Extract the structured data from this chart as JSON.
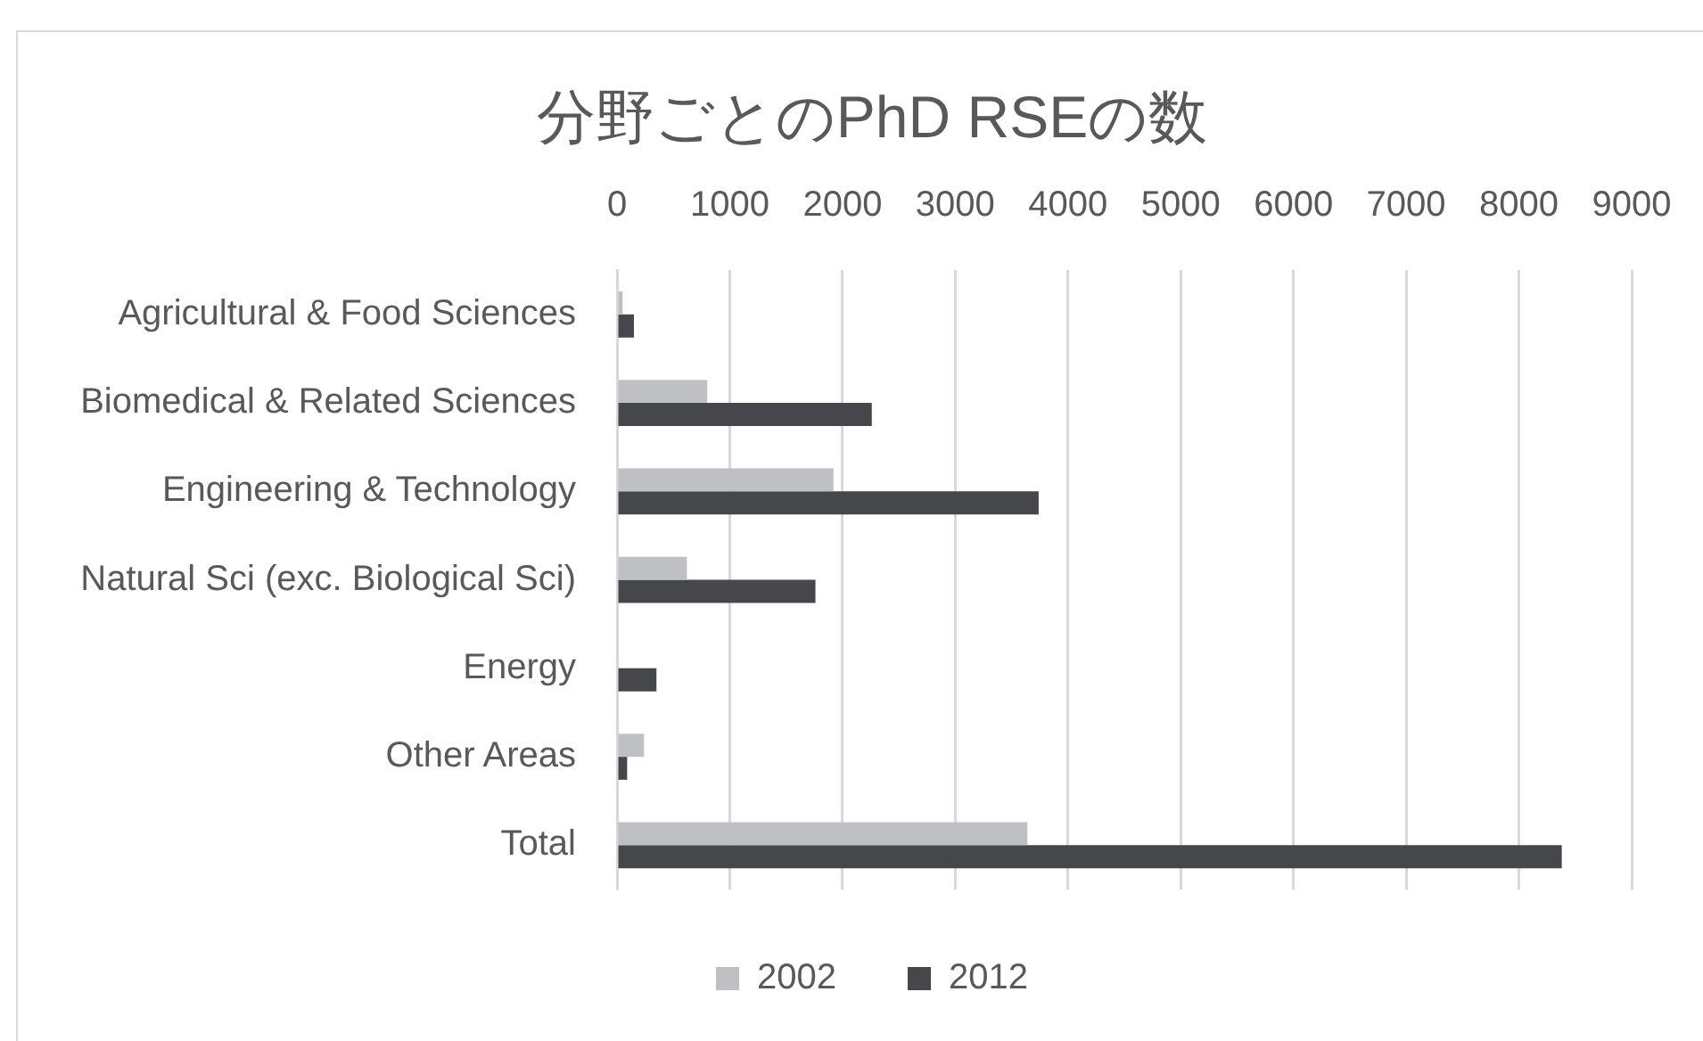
{
  "chart_data": {
    "type": "bar",
    "orientation": "horizontal",
    "title": "分野ごとのPhD RSEの数",
    "categories": [
      "Agricultural & Food Sciences",
      "Biomedical & Related Sciences",
      "Engineering & Technology",
      "Natural Sci (exc. Biological Sci)",
      "Energy",
      "Other Areas",
      "Total"
    ],
    "series": [
      {
        "name": "2002",
        "color": "#bfc0c3",
        "values": [
          50,
          800,
          1920,
          620,
          null,
          240,
          3640
        ]
      },
      {
        "name": "2012",
        "color": "#46474a",
        "values": [
          150,
          2260,
          3740,
          1760,
          350,
          90,
          8380
        ]
      }
    ],
    "xlim": [
      0,
      9000
    ],
    "xticks": [
      0,
      1000,
      2000,
      3000,
      4000,
      5000,
      6000,
      7000,
      8000,
      9000
    ],
    "grid": "x",
    "legend": "bottom"
  }
}
